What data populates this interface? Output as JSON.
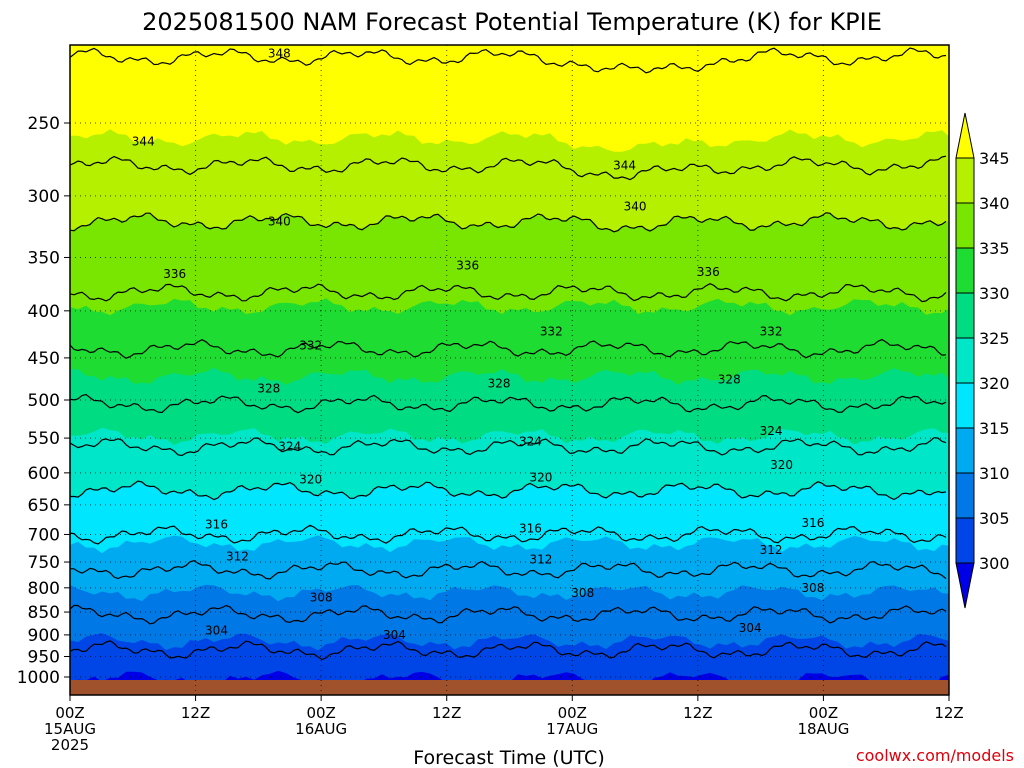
{
  "chart_data": {
    "type": "contour",
    "title": "2025081500 NAM Forecast Potential Temperature (K) for KPIE",
    "xlabel": "Forecast Time (UTC)",
    "credit": "coolwx.com/models",
    "x_ticks": [
      {
        "hour": 0,
        "line1": "00Z",
        "line2": "15AUG",
        "line3": "2025"
      },
      {
        "hour": 12,
        "line1": "12Z",
        "line2": "",
        "line3": ""
      },
      {
        "hour": 24,
        "line1": "00Z",
        "line2": "16AUG",
        "line3": ""
      },
      {
        "hour": 36,
        "line1": "12Z",
        "line2": "",
        "line3": ""
      },
      {
        "hour": 48,
        "line1": "00Z",
        "line2": "17AUG",
        "line3": ""
      },
      {
        "hour": 60,
        "line1": "12Z",
        "line2": "",
        "line3": ""
      },
      {
        "hour": 72,
        "line1": "00Z",
        "line2": "18AUG",
        "line3": ""
      },
      {
        "hour": 84,
        "line1": "12Z",
        "line2": "",
        "line3": ""
      }
    ],
    "xlim_hours": [
      0,
      84
    ],
    "y_ticks": [
      "250",
      "300",
      "350",
      "400",
      "450",
      "500",
      "550",
      "600",
      "650",
      "700",
      "750",
      "800",
      "850",
      "900",
      "950",
      "1000"
    ],
    "ylim_hpa": [
      200,
      1000
    ],
    "y_scale": "log-pressure",
    "grid": "dotted",
    "colorbar": {
      "labels": [
        "345",
        "340",
        "335",
        "330",
        "325",
        "320",
        "315",
        "310",
        "305",
        "300"
      ],
      "levels": [
        300,
        305,
        310,
        315,
        320,
        325,
        330,
        335,
        340,
        345
      ],
      "colors": [
        "#0000e6",
        "#0046e6",
        "#0078e6",
        "#00aaf0",
        "#00e6ff",
        "#00e6c8",
        "#00dc82",
        "#1edc32",
        "#78e600",
        "#b4f000",
        "#ffff00"
      ],
      "placement": "right"
    },
    "contour_levels": [
      304,
      308,
      312,
      316,
      320,
      324,
      328,
      332,
      336,
      340,
      344,
      348
    ],
    "contour_labels": [
      {
        "text": "348",
        "hour": 20,
        "p": 210
      },
      {
        "text": "344",
        "hour": 7,
        "p": 262
      },
      {
        "text": "344",
        "hour": 53,
        "p": 278
      },
      {
        "text": "340",
        "hour": 20,
        "p": 320
      },
      {
        "text": "340",
        "hour": 54,
        "p": 308
      },
      {
        "text": "336",
        "hour": 10,
        "p": 365
      },
      {
        "text": "336",
        "hour": 38,
        "p": 357
      },
      {
        "text": "336",
        "hour": 61,
        "p": 363
      },
      {
        "text": "332",
        "hour": 23,
        "p": 436
      },
      {
        "text": "332",
        "hour": 46,
        "p": 421
      },
      {
        "text": "332",
        "hour": 67,
        "p": 421
      },
      {
        "text": "328",
        "hour": 19,
        "p": 486
      },
      {
        "text": "328",
        "hour": 41,
        "p": 480
      },
      {
        "text": "328",
        "hour": 63,
        "p": 475
      },
      {
        "text": "324",
        "hour": 21,
        "p": 562
      },
      {
        "text": "324",
        "hour": 44,
        "p": 555
      },
      {
        "text": "324",
        "hour": 67,
        "p": 540
      },
      {
        "text": "320",
        "hour": 23,
        "p": 610
      },
      {
        "text": "320",
        "hour": 45,
        "p": 607
      },
      {
        "text": "320",
        "hour": 68,
        "p": 588
      },
      {
        "text": "316",
        "hour": 14,
        "p": 683
      },
      {
        "text": "316",
        "hour": 44,
        "p": 690
      },
      {
        "text": "316",
        "hour": 71,
        "p": 680
      },
      {
        "text": "312",
        "hour": 16,
        "p": 740
      },
      {
        "text": "312",
        "hour": 45,
        "p": 745
      },
      {
        "text": "312",
        "hour": 67,
        "p": 728
      },
      {
        "text": "308",
        "hour": 24,
        "p": 820
      },
      {
        "text": "308",
        "hour": 49,
        "p": 810
      },
      {
        "text": "308",
        "hour": 71,
        "p": 800
      },
      {
        "text": "304",
        "hour": 14,
        "p": 890
      },
      {
        "text": "304",
        "hour": 31,
        "p": 900
      },
      {
        "text": "304",
        "hour": 65,
        "p": 885
      }
    ]
  }
}
